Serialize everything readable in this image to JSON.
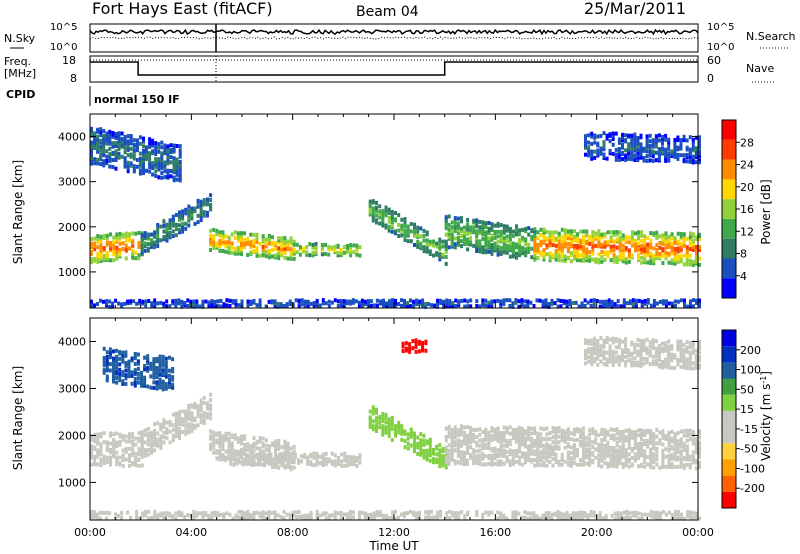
{
  "header": {
    "title": "Fort Hays East (fitACF)",
    "beam": "Beam 04",
    "date": "25/Mar/2011"
  },
  "status": {
    "nsky_label": "N.Sky",
    "nsky_ticks": [
      "10^5",
      "10^0"
    ],
    "nsearch_label": "N.Search",
    "nsearch_ticks": [
      "10^5",
      "10^0"
    ],
    "freq_label_line1": "Freq.",
    "freq_label_line2": "[MHz]",
    "freq_ticks": [
      "18",
      "8"
    ],
    "nave_label": "Nave",
    "nave_ticks": [
      "60",
      "0"
    ],
    "cpid_label": "CPID",
    "cpid_value": "normal 150 IF"
  },
  "colors": {
    "power": [
      "#0000ff",
      "#1a4fc0",
      "#2e7d64",
      "#3fa84a",
      "#8fd23c",
      "#ffd700",
      "#ff8c00",
      "#ff3c00",
      "#ff0000"
    ],
    "velocity": [
      "#ff0000",
      "#ff6000",
      "#ffa000",
      "#ffd040",
      "#c8c8c0",
      "#c8c8c0",
      "#80d040",
      "#40a040",
      "#2060a0",
      "#0030c0",
      "#0000e0"
    ]
  },
  "chart_data": [
    {
      "type": "heatmap",
      "name": "Power",
      "ylabel": "Slant Range [km]",
      "yticks": [
        1000,
        2000,
        3000,
        4000
      ],
      "ylim": [
        200,
        4500
      ],
      "xlim": [
        0,
        24
      ],
      "colorbar_label": "Power [dB]",
      "colorbar_ticks": [
        "28",
        "24",
        "20",
        "16",
        "12",
        "8",
        "4"
      ],
      "colorbar_range": [
        0,
        30
      ],
      "segments": [
        {
          "t0": 0.0,
          "t1": 2.0,
          "r0": 1500,
          "r1": 1600,
          "v": 24,
          "spread": 300
        },
        {
          "t0": 2.0,
          "t1": 4.7,
          "r0": 1600,
          "r1": 2500,
          "v": 10,
          "spread": 250
        },
        {
          "t0": 4.7,
          "t1": 8.0,
          "r0": 1700,
          "r1": 1500,
          "v": 22,
          "spread": 250
        },
        {
          "t0": 8.0,
          "t1": 10.6,
          "r0": 1500,
          "r1": 1480,
          "v": 18,
          "spread": 120
        },
        {
          "t0": 11.0,
          "t1": 14.0,
          "r0": 2400,
          "r1": 1400,
          "v": 14,
          "spread": 250
        },
        {
          "t0": 14.0,
          "t1": 17.5,
          "r0": 1900,
          "r1": 1600,
          "v": 14,
          "spread": 350
        },
        {
          "t0": 17.5,
          "t1": 24.0,
          "r0": 1600,
          "r1": 1500,
          "v": 24,
          "spread": 350
        },
        {
          "t0": 0.0,
          "t1": 3.5,
          "r0": 3800,
          "r1": 3400,
          "v": 8,
          "spread": 400
        },
        {
          "t0": 19.5,
          "t1": 24.0,
          "r0": 3800,
          "r1": 3700,
          "v": 6,
          "spread": 300
        },
        {
          "t0": 0.0,
          "t1": 24.0,
          "r0": 300,
          "r1": 300,
          "v": 5,
          "spread": 60
        }
      ]
    },
    {
      "type": "heatmap",
      "name": "Velocity",
      "ylabel": "Slant Range [km]",
      "yticks": [
        1000,
        2000,
        3000,
        4000
      ],
      "ylim": [
        200,
        4500
      ],
      "xlim": [
        0,
        24
      ],
      "xlabel": "Time UT",
      "xticks": [
        "00:00",
        "04:00",
        "08:00",
        "12:00",
        "16:00",
        "20:00",
        "00:00"
      ],
      "colorbar_label": "Velocity [m s^-1]",
      "colorbar_ticks": [
        "200",
        "100",
        "50",
        "15",
        "-15",
        "-50",
        "-100",
        "-200"
      ],
      "colorbar_range": [
        -250,
        250
      ],
      "segments": [
        {
          "t0": 0.0,
          "t1": 2.0,
          "r0": 1700,
          "r1": 1700,
          "v": 0,
          "spread": 350
        },
        {
          "t0": 2.0,
          "t1": 4.7,
          "r0": 1800,
          "r1": 2600,
          "v": 0,
          "spread": 300
        },
        {
          "t0": 4.7,
          "t1": 8.0,
          "r0": 1800,
          "r1": 1550,
          "v": 0,
          "spread": 300
        },
        {
          "t0": 5.5,
          "t1": 10.6,
          "r0": 1500,
          "r1": 1480,
          "v": -40,
          "spread": 100
        },
        {
          "t0": 11.0,
          "t1": 14.0,
          "r0": 2400,
          "r1": 1500,
          "v": 40,
          "spread": 250
        },
        {
          "t0": 14.0,
          "t1": 24.0,
          "r0": 1800,
          "r1": 1700,
          "v": 0,
          "spread": 400
        },
        {
          "t0": 0.5,
          "t1": 3.2,
          "r0": 3500,
          "r1": 3300,
          "v": 150,
          "spread": 350
        },
        {
          "t0": 12.3,
          "t1": 13.2,
          "r0": 3900,
          "r1": 3900,
          "v": -220,
          "spread": 120
        },
        {
          "t0": 19.5,
          "t1": 24.0,
          "r0": 3800,
          "r1": 3700,
          "v": 0,
          "spread": 300
        },
        {
          "t0": 0.0,
          "t1": 24.0,
          "r0": 300,
          "r1": 300,
          "v": -30,
          "spread": 60
        }
      ]
    }
  ]
}
